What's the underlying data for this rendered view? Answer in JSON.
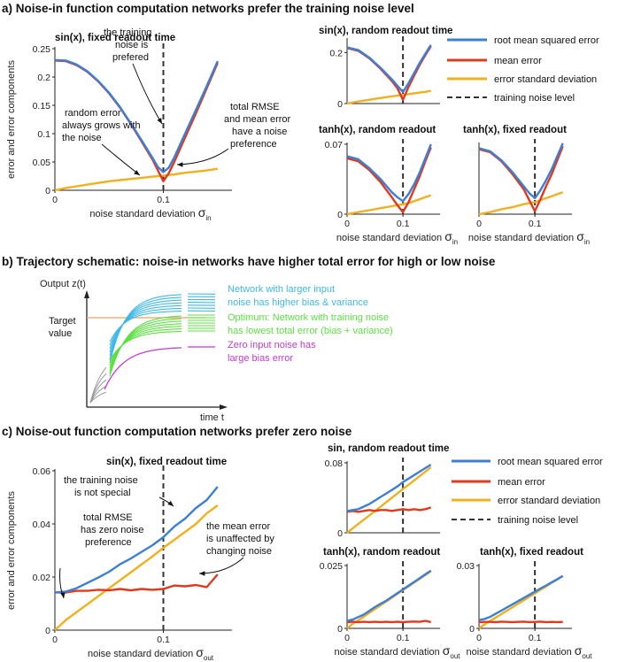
{
  "colors": {
    "rmse": "#3b7fd6",
    "mean": "#e03a1e",
    "sd": "#f0b020",
    "dash": "#333333",
    "cyan": "#3fb8e8",
    "green": "#5de042",
    "magenta": "#c23ccf",
    "target": "#f0a060",
    "gray": "#9a9a9a"
  },
  "headers": {
    "a": "a) Noise-in function computation networks prefer the training noise level",
    "b": "b) Trajectory schematic: noise-in networks have higher total error for high or low noise",
    "c": "c) Noise-out function computation networks prefer zero noise"
  },
  "legend": {
    "rmse": "root mean squared error",
    "mean": "mean error",
    "sd": "error standard deviation",
    "dash": "training noise level"
  },
  "annotations_a": {
    "a1": [
      "the training",
      "noise is",
      "prefered"
    ],
    "a2": [
      "total RMSE",
      "and mean error",
      "have a noise",
      "preference"
    ],
    "a3": [
      "random error",
      "always grows with",
      "the noise"
    ]
  },
  "annotations_c": {
    "c1": [
      "the training noise",
      "is not special"
    ],
    "c2": [
      "total RMSE",
      "has zero noise",
      "preference"
    ],
    "c3": [
      "the mean error",
      "is unaffected by",
      "changing noise"
    ]
  },
  "schematic": {
    "ylabel": "Output z(t)",
    "xlabel": "time t",
    "target_label": [
      "Target",
      "value"
    ],
    "cyan_label": [
      "Network with larger input",
      "noise has higher bias & variance"
    ],
    "green_label": [
      "Optimum: Network with training noise",
      "has lowest total error (bias + variance)"
    ],
    "magenta_label": [
      "Zero input noise has",
      "large bias error"
    ]
  },
  "chart_data": [
    {
      "id": "a-main",
      "type": "line",
      "title": "sin(x), fixed readout time",
      "xlabel": "noise standard deviation",
      "xsym": "σ",
      "xsub": "in",
      "ylabel": "error and error components",
      "xlim": [
        0,
        0.16
      ],
      "ylim": [
        0,
        0.25
      ],
      "xticks": [
        0,
        0.1
      ],
      "xticklabels": [
        "0",
        "0.1"
      ],
      "yticks": [
        0,
        0.05,
        0.1,
        0.15,
        0.2,
        0.25
      ],
      "yticklabels": [
        "0",
        "0.05",
        "0.1",
        "0.15",
        "0.2",
        "0.25"
      ],
      "vline": 0.1,
      "x": [
        0,
        0.01,
        0.02,
        0.03,
        0.04,
        0.05,
        0.06,
        0.07,
        0.08,
        0.09,
        0.095,
        0.1,
        0.105,
        0.11,
        0.12,
        0.13,
        0.14,
        0.15
      ],
      "series": [
        {
          "name": "root mean squared error",
          "key": "rmse",
          "values": [
            0.23,
            0.229,
            0.222,
            0.21,
            0.193,
            0.172,
            0.147,
            0.118,
            0.088,
            0.057,
            0.041,
            0.032,
            0.04,
            0.058,
            0.1,
            0.142,
            0.184,
            0.228
          ]
        },
        {
          "name": "mean error",
          "key": "mean",
          "values": [
            0.229,
            0.228,
            0.221,
            0.209,
            0.192,
            0.171,
            0.146,
            0.117,
            0.086,
            0.054,
            0.035,
            0.016,
            0.03,
            0.05,
            0.093,
            0.136,
            0.18,
            0.225
          ]
        },
        {
          "name": "error standard deviation",
          "key": "sd",
          "values": [
            0,
            0.004,
            0.007,
            0.01,
            0.013,
            0.016,
            0.018,
            0.02,
            0.022,
            0.024,
            0.025,
            0.026,
            0.027,
            0.028,
            0.031,
            0.033,
            0.035,
            0.038
          ]
        }
      ]
    },
    {
      "id": "a-s1",
      "type": "line",
      "title": "sin(x), random readout time",
      "xlim": [
        0,
        0.16
      ],
      "ylim": [
        0,
        0.25
      ],
      "yticks": [
        0,
        0.2
      ],
      "yticklabels": [
        "0",
        "0.2"
      ],
      "vline": 0.1,
      "x": [
        0,
        0.02,
        0.04,
        0.06,
        0.08,
        0.09,
        0.1,
        0.11,
        0.12,
        0.13,
        0.14,
        0.15
      ],
      "series": [
        {
          "name": "root mean squared error",
          "key": "rmse",
          "values": [
            0.22,
            0.21,
            0.18,
            0.14,
            0.095,
            0.07,
            0.045,
            0.08,
            0.12,
            0.16,
            0.195,
            0.23
          ]
        },
        {
          "name": "mean error",
          "key": "mean",
          "values": [
            0.218,
            0.207,
            0.177,
            0.136,
            0.089,
            0.06,
            0.015,
            0.065,
            0.11,
            0.152,
            0.19,
            0.225
          ]
        },
        {
          "name": "error standard deviation",
          "key": "sd",
          "values": [
            0,
            0.008,
            0.015,
            0.022,
            0.028,
            0.031,
            0.034,
            0.037,
            0.04,
            0.043,
            0.046,
            0.05
          ]
        }
      ]
    },
    {
      "id": "a-s2",
      "type": "line",
      "title": "tanh(x), random readout",
      "xlabel": "noise standard deviation",
      "xsym": "σ",
      "xsub": "in",
      "xlim": [
        0,
        0.16
      ],
      "ylim": [
        0,
        0.07
      ],
      "xticks": [
        0,
        0.1
      ],
      "xticklabels": [
        "0",
        "0.1"
      ],
      "yticks": [
        0,
        0.07
      ],
      "yticklabels": [
        "0",
        "0.07"
      ],
      "vline": 0.1,
      "x": [
        0,
        0.02,
        0.04,
        0.06,
        0.08,
        0.09,
        0.1,
        0.11,
        0.12,
        0.13,
        0.14,
        0.15
      ],
      "series": [
        {
          "name": "root mean squared error",
          "key": "rmse",
          "values": [
            0.058,
            0.055,
            0.046,
            0.035,
            0.022,
            0.017,
            0.013,
            0.02,
            0.03,
            0.042,
            0.056,
            0.07
          ]
        },
        {
          "name": "mean error",
          "key": "mean",
          "values": [
            0.056,
            0.053,
            0.044,
            0.032,
            0.017,
            0.009,
            0.002,
            0.012,
            0.025,
            0.038,
            0.053,
            0.067
          ]
        },
        {
          "name": "error standard deviation",
          "key": "sd",
          "values": [
            0,
            0.002,
            0.004,
            0.006,
            0.008,
            0.009,
            0.01,
            0.011,
            0.013,
            0.015,
            0.017,
            0.019
          ]
        }
      ]
    },
    {
      "id": "a-s3",
      "type": "line",
      "title": "tanh(x), fixed readout",
      "xlabel": "noise standard deviation",
      "xsym": "σ",
      "xsub": "in",
      "xlim": [
        0,
        0.16
      ],
      "ylim": [
        0,
        0.07
      ],
      "xticks": [
        0,
        0.1
      ],
      "xticklabels": [
        "0",
        "0.1"
      ],
      "vline": 0.1,
      "x": [
        0,
        0.02,
        0.04,
        0.06,
        0.08,
        0.09,
        0.1,
        0.11,
        0.12,
        0.13,
        0.14,
        0.15
      ],
      "series": [
        {
          "name": "root mean squared error",
          "key": "rmse",
          "values": [
            0.066,
            0.063,
            0.054,
            0.042,
            0.028,
            0.021,
            0.016,
            0.024,
            0.034,
            0.045,
            0.058,
            0.071
          ]
        },
        {
          "name": "mean error",
          "key": "mean",
          "values": [
            0.065,
            0.062,
            0.053,
            0.04,
            0.025,
            0.014,
            0.003,
            0.015,
            0.028,
            0.04,
            0.054,
            0.068
          ]
        },
        {
          "name": "error standard deviation",
          "key": "sd",
          "values": [
            0,
            0.002,
            0.005,
            0.007,
            0.01,
            0.011,
            0.012,
            0.014,
            0.016,
            0.018,
            0.02,
            0.022
          ]
        }
      ]
    },
    {
      "id": "c-main",
      "type": "line",
      "title": "sin(x), fixed readout time",
      "xlabel": "noise standard deviation",
      "xsym": "σ",
      "xsub": "out",
      "ylabel": "error and error components",
      "xlim": [
        0,
        0.16
      ],
      "ylim": [
        0,
        0.06
      ],
      "xticks": [
        0,
        0.1
      ],
      "xticklabels": [
        "0",
        "0.1"
      ],
      "yticks": [
        0,
        0.02,
        0.04,
        0.06
      ],
      "yticklabels": [
        "0",
        "0.02",
        "0.04",
        "0.06"
      ],
      "vline": 0.1,
      "x": [
        0,
        0.01,
        0.02,
        0.03,
        0.04,
        0.05,
        0.06,
        0.07,
        0.08,
        0.09,
        0.1,
        0.11,
        0.12,
        0.13,
        0.14,
        0.15
      ],
      "series": [
        {
          "name": "root mean squared error",
          "key": "rmse",
          "values": [
            0.0142,
            0.0145,
            0.0158,
            0.0178,
            0.0198,
            0.022,
            0.0248,
            0.027,
            0.0295,
            0.032,
            0.035,
            0.039,
            0.042,
            0.046,
            0.049,
            0.054
          ]
        },
        {
          "name": "mean error",
          "key": "mean",
          "values": [
            0.0142,
            0.0142,
            0.0148,
            0.0148,
            0.0152,
            0.015,
            0.0155,
            0.015,
            0.0155,
            0.0152,
            0.0155,
            0.0168,
            0.0165,
            0.017,
            0.0162,
            0.021
          ]
        },
        {
          "name": "error standard deviation",
          "key": "sd",
          "values": [
            0,
            0.0038,
            0.0068,
            0.0098,
            0.0128,
            0.0158,
            0.0188,
            0.0218,
            0.0248,
            0.0278,
            0.031,
            0.034,
            0.037,
            0.04,
            0.044,
            0.047
          ]
        }
      ]
    },
    {
      "id": "c-s1",
      "type": "line",
      "title": "sin, random readout time",
      "xlim": [
        0,
        0.16
      ],
      "ylim": [
        0,
        0.08
      ],
      "yticks": [
        0,
        0.08
      ],
      "yticklabels": [
        "0",
        "0.08"
      ],
      "vline": 0.1,
      "x": [
        0,
        0.01,
        0.02,
        0.03,
        0.04,
        0.05,
        0.06,
        0.07,
        0.08,
        0.09,
        0.1,
        0.11,
        0.12,
        0.13,
        0.14,
        0.15
      ],
      "series": [
        {
          "name": "root mean squared error",
          "key": "rmse",
          "values": [
            0.025,
            0.026,
            0.027,
            0.03,
            0.033,
            0.037,
            0.041,
            0.045,
            0.049,
            0.053,
            0.058,
            0.062,
            0.066,
            0.07,
            0.074,
            0.078
          ]
        },
        {
          "name": "mean error",
          "key": "mean",
          "values": [
            0.024,
            0.025,
            0.024,
            0.025,
            0.026,
            0.025,
            0.026,
            0.026,
            0.025,
            0.026,
            0.027,
            0.026,
            0.027,
            0.026,
            0.027,
            0.029
          ]
        },
        {
          "name": "error standard deviation",
          "key": "sd",
          "values": [
            0,
            0.005,
            0.01,
            0.015,
            0.02,
            0.025,
            0.03,
            0.035,
            0.04,
            0.045,
            0.05,
            0.055,
            0.06,
            0.065,
            0.07,
            0.075
          ]
        }
      ]
    },
    {
      "id": "c-s2",
      "type": "line",
      "title": "tanh(x), random readout",
      "xlabel": "noise standard deviation",
      "xsym": "σ",
      "xsub": "out",
      "xlim": [
        0,
        0.16
      ],
      "ylim": [
        0,
        0.025
      ],
      "xticks": [
        0,
        0.1
      ],
      "xticklabels": [
        "0",
        "0.1"
      ],
      "yticks": [
        0,
        0.025
      ],
      "yticklabels": [
        "0",
        "0.025"
      ],
      "vline": 0.1,
      "x": [
        0,
        0.01,
        0.02,
        0.03,
        0.04,
        0.05,
        0.06,
        0.07,
        0.08,
        0.09,
        0.1,
        0.11,
        0.12,
        0.13,
        0.14,
        0.15
      ],
      "series": [
        {
          "name": "root mean squared error",
          "key": "rmse",
          "values": [
            0.003,
            0.0035,
            0.0045,
            0.0055,
            0.007,
            0.0085,
            0.0098,
            0.011,
            0.0125,
            0.014,
            0.0155,
            0.017,
            0.0185,
            0.02,
            0.0215,
            0.023
          ]
        },
        {
          "name": "mean error",
          "key": "mean",
          "values": [
            0.0025,
            0.0026,
            0.0025,
            0.0026,
            0.0025,
            0.0026,
            0.0025,
            0.0026,
            0.0025,
            0.0026,
            0.0025,
            0.0026,
            0.0027,
            0.0026,
            0.003,
            0.0025
          ]
        },
        {
          "name": "error standard deviation",
          "key": "sd",
          "values": [
            0,
            0.0018,
            0.0032,
            0.0047,
            0.0062,
            0.0077,
            0.0092,
            0.0107,
            0.0122,
            0.0137,
            0.0152,
            0.0167,
            0.0182,
            0.0197,
            0.0212,
            0.0227
          ]
        }
      ]
    },
    {
      "id": "c-s3",
      "type": "line",
      "title": "tanh(x), fixed readout",
      "xlabel": "noise standard deviation",
      "xsym": "σ",
      "xsub": "out",
      "xlim": [
        0,
        0.16
      ],
      "ylim": [
        0,
        0.03
      ],
      "xticks": [
        0,
        0.1
      ],
      "xticklabels": [
        "0",
        "0.1"
      ],
      "yticks": [
        0,
        0.03
      ],
      "yticklabels": [
        "0",
        "0.03"
      ],
      "vline": 0.1,
      "x": [
        0,
        0.01,
        0.02,
        0.03,
        0.04,
        0.05,
        0.06,
        0.07,
        0.08,
        0.09,
        0.1,
        0.11,
        0.12,
        0.13,
        0.14,
        0.15
      ],
      "series": [
        {
          "name": "root mean squared error",
          "key": "rmse",
          "values": [
            0.004,
            0.0045,
            0.0055,
            0.007,
            0.0085,
            0.01,
            0.0115,
            0.013,
            0.0145,
            0.016,
            0.0175,
            0.019,
            0.0205,
            0.022,
            0.0235,
            0.025
          ]
        },
        {
          "name": "mean error",
          "key": "mean",
          "values": [
            0.003,
            0.0031,
            0.0031,
            0.003,
            0.0032,
            0.0031,
            0.003,
            0.0031,
            0.0032,
            0.003,
            0.0031,
            0.0032,
            0.003,
            0.0031,
            0.003,
            0.0031
          ]
        },
        {
          "name": "error standard deviation",
          "key": "sd",
          "values": [
            0,
            0.0019,
            0.0035,
            0.0052,
            0.0068,
            0.0085,
            0.0101,
            0.0118,
            0.0134,
            0.0151,
            0.0167,
            0.0184,
            0.02,
            0.0217,
            0.0233,
            0.025
          ]
        }
      ]
    }
  ]
}
